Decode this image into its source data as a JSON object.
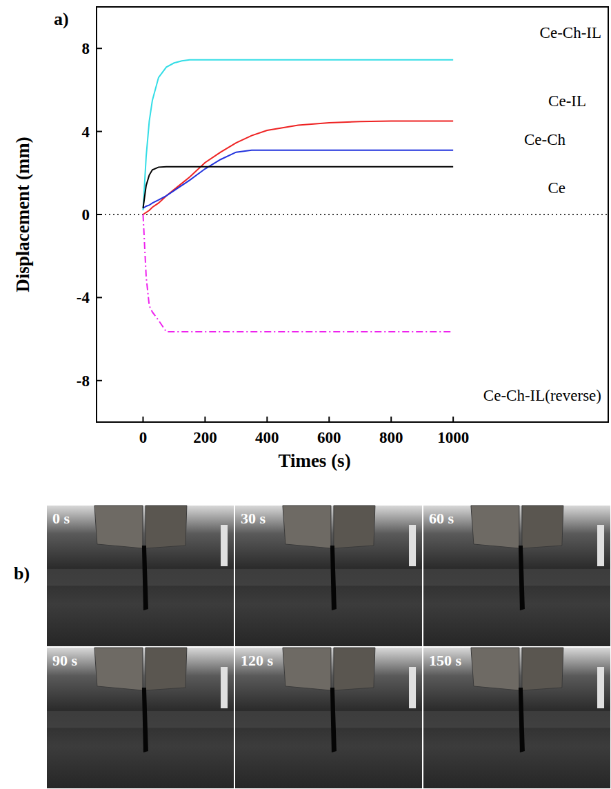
{
  "chart_data": {
    "type": "line",
    "panel_label": "a)",
    "x_label": "Times (s)",
    "y_label": "Displacement (mm)",
    "xlim": [
      -150,
      1500
    ],
    "xticks": [
      0,
      200,
      400,
      600,
      800,
      1000
    ],
    "ylim": [
      -10,
      10
    ],
    "yticks": [
      -8,
      -4,
      0,
      4,
      8
    ],
    "x": [
      0,
      10,
      20,
      30,
      50,
      75,
      100,
      125,
      150,
      200,
      250,
      300,
      350,
      400,
      500,
      600,
      700,
      800,
      1000
    ],
    "series": [
      {
        "name": "Ce-Ch-IL",
        "color": "#33dde6",
        "line_style": "solid",
        "values": [
          0.2,
          2.8,
          4.5,
          5.5,
          6.6,
          7.1,
          7.3,
          7.4,
          7.45,
          7.45,
          7.45,
          7.45,
          7.45,
          7.45,
          7.45,
          7.45,
          7.45,
          7.45,
          7.45
        ]
      },
      {
        "name": "Ce-IL",
        "color": "#ee2222",
        "line_style": "solid",
        "values": [
          0,
          0.1,
          0.2,
          0.35,
          0.55,
          0.9,
          1.2,
          1.5,
          1.8,
          2.5,
          3.0,
          3.45,
          3.8,
          4.05,
          4.3,
          4.42,
          4.48,
          4.5,
          4.5
        ]
      },
      {
        "name": "Ce-Ch",
        "color": "#2233dd",
        "line_style": "solid",
        "values": [
          0.3,
          0.4,
          0.45,
          0.55,
          0.7,
          0.9,
          1.15,
          1.4,
          1.65,
          2.2,
          2.65,
          3.0,
          3.1,
          3.1,
          3.1,
          3.1,
          3.1,
          3.1,
          3.1
        ]
      },
      {
        "name": "Ce",
        "color": "#000000",
        "line_style": "solid",
        "values": [
          0.3,
          1.4,
          1.9,
          2.15,
          2.28,
          2.3,
          2.3,
          2.3,
          2.3,
          2.3,
          2.3,
          2.3,
          2.3,
          2.3,
          2.3,
          2.3,
          2.3,
          2.3,
          2.3
        ]
      },
      {
        "name": "Ce-Ch-IL(reverse)",
        "color": "#ee22ee",
        "line_style": "dashdot",
        "values": [
          0,
          -3.0,
          -4.4,
          -4.7,
          -5.1,
          -5.65,
          -5.65,
          -5.65,
          -5.65,
          -5.65,
          -5.65,
          -5.65,
          -5.65,
          -5.65,
          -5.65,
          -5.65,
          -5.65,
          -5.65,
          -5.65
        ]
      }
    ]
  },
  "photos": {
    "panel_label": "b)",
    "frames": [
      {
        "label": "0 s"
      },
      {
        "label": "30 s"
      },
      {
        "label": "60 s"
      },
      {
        "label": "90 s"
      },
      {
        "label": "120 s"
      },
      {
        "label": "150 s"
      }
    ]
  }
}
